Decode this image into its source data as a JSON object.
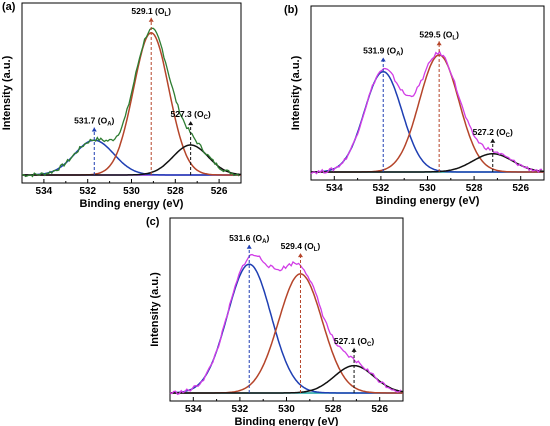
{
  "figure": {
    "panel_labels": [
      "(a)",
      "(b)",
      "(c)"
    ]
  },
  "chart_data": [
    {
      "type": "line",
      "panel": "(a)",
      "xlabel": "Binding energy (eV)",
      "ylabel": "Intensity (a.u.)",
      "xlim": [
        535,
        525
      ],
      "ylim": [
        0,
        1.0
      ],
      "x_ticks": [
        534,
        532,
        530,
        528,
        526
      ],
      "colors": {
        "envelope": "#2e7d32",
        "OL": "#b5452a",
        "OA": "#1f3fb3",
        "Oc": "#111111",
        "background": "#8a2be2"
      },
      "series": [
        {
          "role": "OA",
          "center": 531.7,
          "height": 0.22,
          "fwhm": 2.1
        },
        {
          "role": "OL",
          "center": 529.1,
          "height": 0.9,
          "fwhm": 1.9
        },
        {
          "role": "Oc",
          "center": 527.3,
          "height": 0.19,
          "fwhm": 1.9
        }
      ],
      "annotations": [
        {
          "x": 531.7,
          "label": "531.7 (O",
          "sub": "A",
          "color": "#1f3fb3"
        },
        {
          "x": 529.1,
          "label": "529.1 (O",
          "sub": "L",
          "color": "#b5452a"
        },
        {
          "x": 527.3,
          "label": "527.3 (O",
          "sub": "C",
          "color": "#111111"
        }
      ]
    },
    {
      "type": "line",
      "panel": "(b)",
      "xlabel": "Binding energy (eV)",
      "ylabel": "Intensity (a.u.)",
      "xlim": [
        535,
        525
      ],
      "ylim": [
        0,
        1.0
      ],
      "x_ticks": [
        534,
        532,
        530,
        528,
        526
      ],
      "colors": {
        "envelope": "#d13de6",
        "OL": "#b5452a",
        "OA": "#1f3fb3",
        "Oc": "#111111",
        "background": "#17a2a2"
      },
      "series": [
        {
          "role": "OA",
          "center": 531.9,
          "height": 0.66,
          "fwhm": 1.9
        },
        {
          "role": "OL",
          "center": 529.5,
          "height": 0.77,
          "fwhm": 2.0
        },
        {
          "role": "Oc",
          "center": 527.2,
          "height": 0.12,
          "fwhm": 2.0
        }
      ],
      "annotations": [
        {
          "x": 531.9,
          "label": "531.9 (O",
          "sub": "A",
          "color": "#1f3fb3"
        },
        {
          "x": 529.5,
          "label": "529.5 (O",
          "sub": "L",
          "color": "#b5452a"
        },
        {
          "x": 527.2,
          "label": "527.2 (O",
          "sub": "C",
          "color": "#111111"
        }
      ]
    },
    {
      "type": "line",
      "panel": "(c)",
      "xlabel": "Binding energy (eV)",
      "ylabel": "Intensity (a.u.)",
      "xlim": [
        535,
        525
      ],
      "ylim": [
        0,
        1.0
      ],
      "x_ticks": [
        534,
        532,
        530,
        528,
        526
      ],
      "colors": {
        "envelope": "#d13de6",
        "OL": "#b5452a",
        "OA": "#1f3fb3",
        "Oc": "#111111",
        "background": "#17a2a2"
      },
      "series": [
        {
          "role": "OA",
          "center": 531.6,
          "height": 0.8,
          "fwhm": 2.2
        },
        {
          "role": "OL",
          "center": 529.4,
          "height": 0.74,
          "fwhm": 2.2
        },
        {
          "role": "Oc",
          "center": 527.1,
          "height": 0.17,
          "fwhm": 2.0
        }
      ],
      "annotations": [
        {
          "x": 531.6,
          "label": "531.6 (O",
          "sub": "A",
          "color": "#1f3fb3"
        },
        {
          "x": 529.4,
          "label": "529.4 (O",
          "sub": "L",
          "color": "#b5452a"
        },
        {
          "x": 527.1,
          "label": "527.1 (O",
          "sub": "C",
          "color": "#111111"
        }
      ]
    }
  ]
}
